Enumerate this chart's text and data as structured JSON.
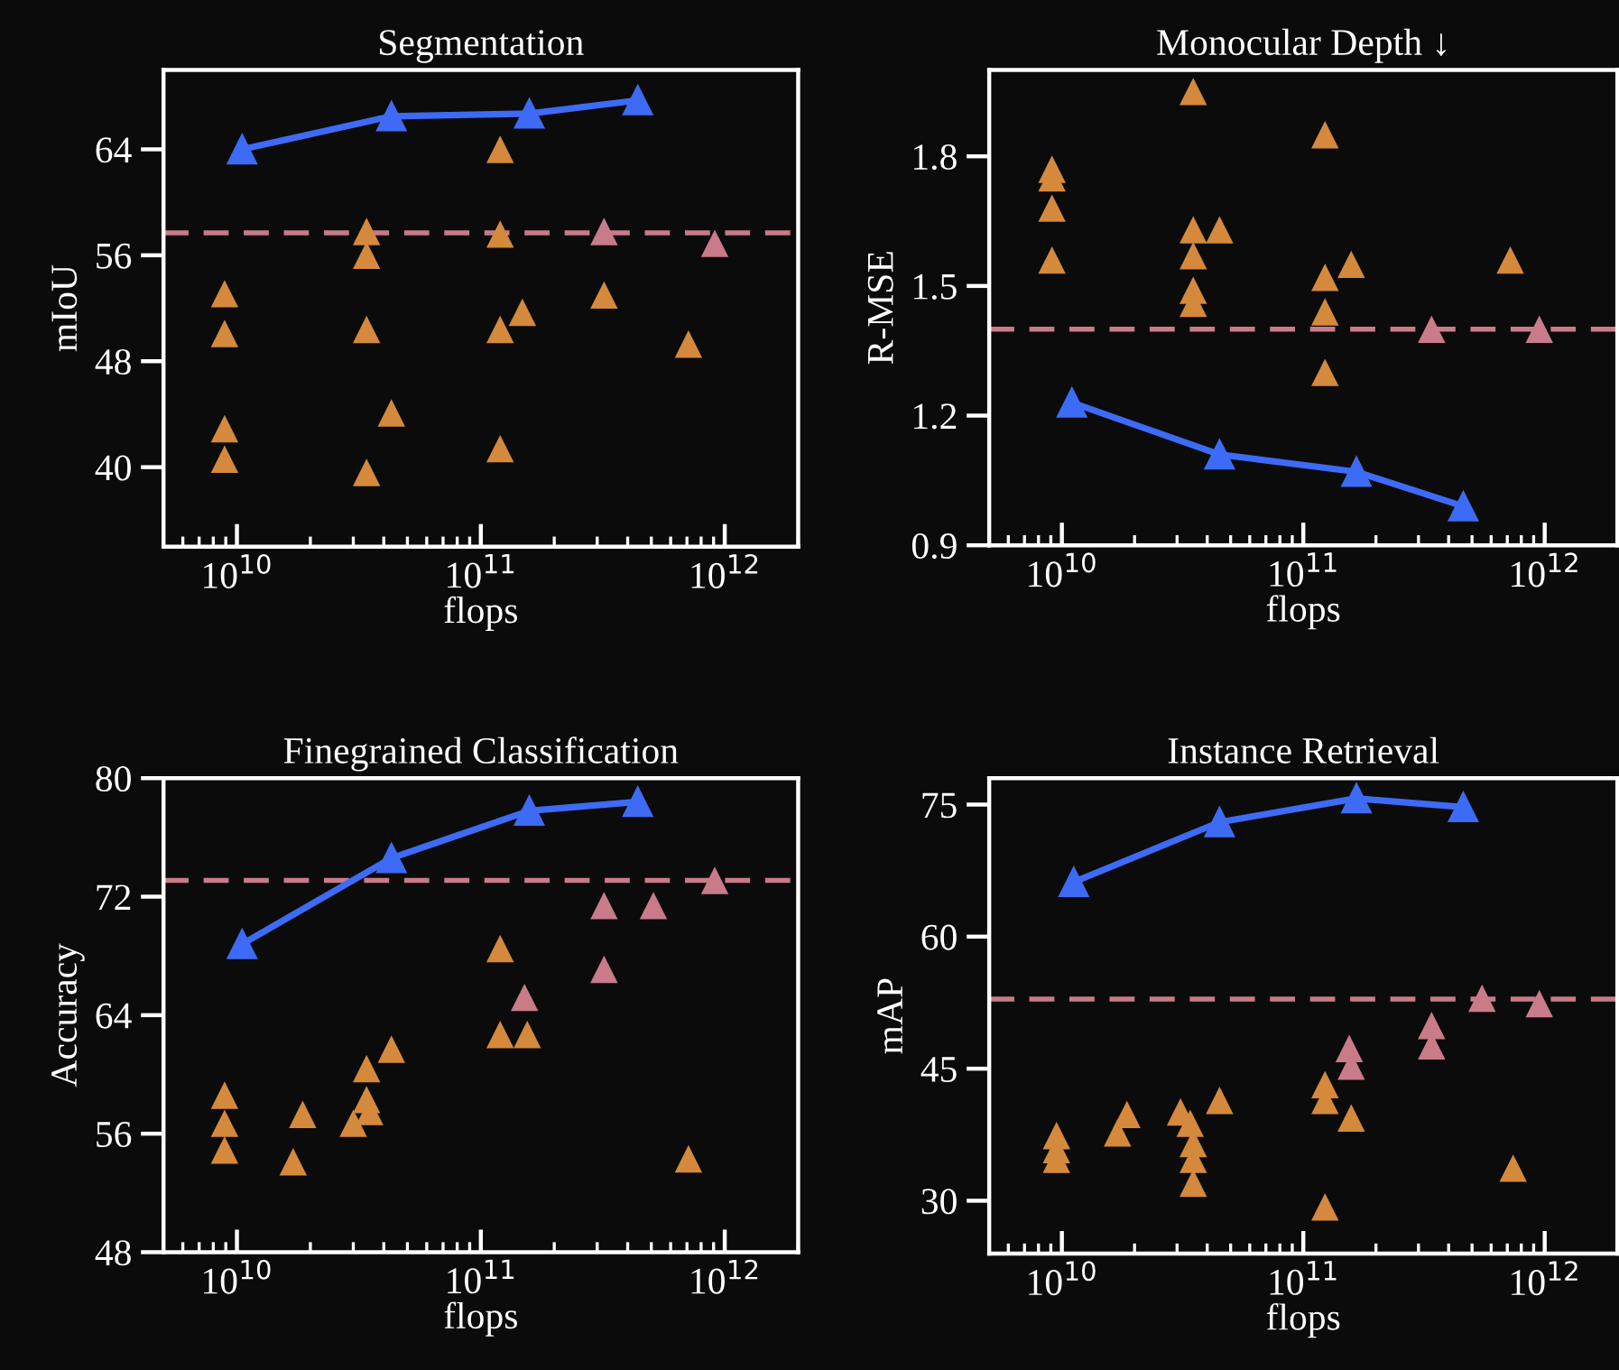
{
  "chart_data": [
    {
      "type": "scatter",
      "title": "Segmentation",
      "xlabel": "flops",
      "ylabel": "mIoU",
      "log": "x",
      "marker": "triangle",
      "xlim": [
        5000000000.0,
        2000000000000.0
      ],
      "ylim": [
        34,
        70
      ],
      "xticks": [
        {
          "value": 10000000000.0,
          "label": "10$^{10}$"
        },
        {
          "value": 100000000000.0,
          "label": "10$^{11}$"
        },
        {
          "value": 1000000000000.0,
          "label": "10$^{12}$"
        }
      ],
      "yticks": [
        40,
        48,
        56,
        64
      ],
      "series": [
        {
          "color": "#d4893c",
          "x": [
            8900000000.0,
            8900000000.0,
            8900000000.0,
            8900000000.0,
            34000000000.0,
            34000000000.0,
            34000000000.0,
            43000000000.0,
            34000000000.0,
            120000000000.0,
            120000000000.0,
            120000000000.0,
            120000000000.0,
            148000000000.0,
            320000000000.0,
            710000000000.0
          ],
          "values": [
            53.1,
            50.1,
            42.9,
            40.6,
            57.8,
            56.0,
            50.4,
            44.1,
            39.6,
            64.0,
            57.6,
            50.4,
            41.4,
            51.7,
            53.0,
            49.3
          ]
        },
        {
          "color": "#c97b8a",
          "x": [
            320000000000.0,
            910000000000.0
          ],
          "values": [
            57.8,
            56.9
          ]
        },
        {
          "type": "line",
          "color": "#3d6bf5",
          "x": [
            10500000000.0,
            43000000000.0,
            158000000000.0,
            440000000000.0
          ],
          "values": [
            64.0,
            66.5,
            66.7,
            67.7
          ]
        }
      ],
      "ref_lines": [
        {
          "axis": "y",
          "value": 57.7,
          "color": "#c97b8a",
          "line_style": "dashed"
        }
      ]
    },
    {
      "type": "scatter",
      "title": "Monocular Depth ↓",
      "xlabel": "flops",
      "ylabel": "R-MSE",
      "log": "x",
      "marker": "triangle",
      "xlim": [
        5000000000.0,
        2000000000000.0
      ],
      "ylim": [
        0.9,
        2.0
      ],
      "xticks": [
        {
          "value": 10000000000.0,
          "label": "10$^{10}$"
        },
        {
          "value": 100000000000.0,
          "label": "10$^{11}$"
        },
        {
          "value": 1000000000000.0,
          "label": "10$^{12}$"
        }
      ],
      "yticks": [
        0.9,
        1.2,
        1.5,
        1.8
      ],
      "series": [
        {
          "color": "#d4893c",
          "x": [
            9100000000.0,
            9100000000.0,
            9100000000.0,
            9100000000.0,
            35000000000.0,
            35000000000.0,
            35000000000.0,
            35000000000.0,
            35000000000.0,
            45000000000.0,
            123000000000.0,
            123000000000.0,
            123000000000.0,
            123000000000.0,
            158000000000.0,
            720000000000.0
          ],
          "values": [
            1.77,
            1.75,
            1.68,
            1.56,
            1.95,
            1.63,
            1.57,
            1.49,
            1.46,
            1.63,
            1.85,
            1.52,
            1.44,
            1.3,
            1.55,
            1.56
          ]
        },
        {
          "color": "#c97b8a",
          "x": [
            340000000000.0,
            950000000000.0
          ],
          "values": [
            1.4,
            1.4
          ]
        },
        {
          "type": "line",
          "color": "#3d6bf5",
          "x": [
            11000000000.0,
            45000000000.0,
            166000000000.0,
            460000000000.0
          ],
          "values": [
            1.23,
            1.11,
            1.07,
            0.99
          ]
        }
      ],
      "ref_lines": [
        {
          "axis": "y",
          "value": 1.4,
          "color": "#c97b8a",
          "line_style": "dashed"
        }
      ]
    },
    {
      "type": "scatter",
      "title": "Finegrained Classification",
      "xlabel": "flops",
      "ylabel": "Accuracy",
      "log": "x",
      "marker": "triangle",
      "xlim": [
        5000000000.0,
        2000000000000.0
      ],
      "ylim": [
        48,
        80
      ],
      "xticks": [
        {
          "value": 10000000000.0,
          "label": "10$^{10}$"
        },
        {
          "value": 100000000000.0,
          "label": "10$^{11}$"
        },
        {
          "value": 1000000000000.0,
          "label": "10$^{12}$"
        }
      ],
      "yticks": [
        48,
        56,
        64,
        72,
        80
      ],
      "series": [
        {
          "color": "#d4893c",
          "x": [
            8900000000.0,
            8900000000.0,
            8900000000.0,
            17000000000.0,
            18600000000.0,
            30000000000.0,
            34000000000.0,
            34000000000.0,
            35000000000.0,
            43000000000.0,
            120000000000.0,
            120000000000.0,
            155000000000.0,
            710000000000.0
          ],
          "values": [
            58.6,
            56.7,
            54.9,
            54.1,
            57.3,
            56.7,
            60.4,
            58.3,
            57.5,
            61.7,
            68.5,
            62.7,
            62.7,
            54.3
          ]
        },
        {
          "color": "#c97b8a",
          "x": [
            151000000000.0,
            320000000000.0,
            320000000000.0,
            510000000000.0,
            910000000000.0
          ],
          "values": [
            65.2,
            71.4,
            67.1,
            71.4,
            73.1
          ]
        },
        {
          "type": "line",
          "color": "#3d6bf5",
          "x": [
            10500000000.0,
            43000000000.0,
            158000000000.0,
            440000000000.0
          ],
          "values": [
            68.8,
            74.6,
            77.8,
            78.4
          ]
        }
      ],
      "ref_lines": [
        {
          "axis": "y",
          "value": 73.1,
          "color": "#c97b8a",
          "line_style": "dashed"
        }
      ]
    },
    {
      "type": "scatter",
      "title": "Instance Retrieval",
      "xlabel": "flops",
      "ylabel": "mAP",
      "log": "x",
      "marker": "triangle",
      "xlim": [
        5000000000.0,
        2000000000000.0
      ],
      "ylim": [
        24,
        78
      ],
      "xticks": [
        {
          "value": 10000000000.0,
          "label": "10$^{10}$"
        },
        {
          "value": 100000000000.0,
          "label": "10$^{11}$"
        },
        {
          "value": 1000000000000.0,
          "label": "10$^{12}$"
        }
      ],
      "yticks": [
        30,
        45,
        60,
        75
      ],
      "series": [
        {
          "color": "#d4893c",
          "x": [
            9500000000.0,
            9500000000.0,
            9500000000.0,
            18600000000.0,
            17000000000.0,
            31000000000.0,
            34000000000.0,
            35000000000.0,
            35000000000.0,
            35000000000.0,
            45000000000.0,
            123000000000.0,
            123000000000.0,
            123000000000.0,
            158000000000.0,
            740000000000.0
          ],
          "values": [
            37.4,
            35.8,
            34.7,
            39.8,
            37.7,
            40.1,
            38.8,
            36.5,
            34.7,
            32.0,
            41.4,
            43.2,
            41.4,
            29.3,
            39.4,
            33.7
          ]
        },
        {
          "color": "#c97b8a",
          "x": [
            155000000000.0,
            158000000000.0,
            340000000000.0,
            340000000000.0,
            550000000000.0,
            950000000000.0
          ],
          "values": [
            47.3,
            45.3,
            49.9,
            47.6,
            53.0,
            52.4
          ]
        },
        {
          "type": "line",
          "color": "#3d6bf5",
          "x": [
            11200000000.0,
            45000000000.0,
            166000000000.0,
            460000000000.0
          ],
          "values": [
            66.2,
            73.0,
            75.7,
            74.7
          ]
        }
      ],
      "ref_lines": [
        {
          "axis": "y",
          "value": 52.9,
          "color": "#c97b8a",
          "line_style": "dashed"
        }
      ]
    }
  ]
}
